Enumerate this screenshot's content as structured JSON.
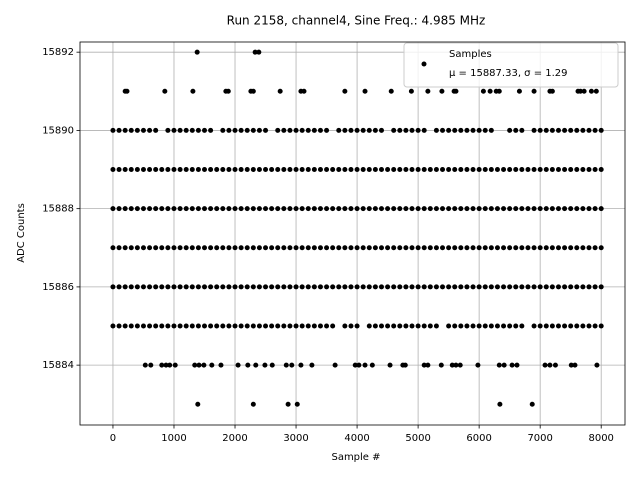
{
  "chart_data": {
    "type": "scatter",
    "title": "Run 2158, channel4, Sine Freq.: 4.985 MHz",
    "x_label": "Sample #",
    "y_label": "ADC Counts",
    "xlim": [
      -540,
      8390
    ],
    "ylim": [
      15882.47,
      15892.26
    ],
    "xticks": [
      0,
      1000,
      2000,
      3000,
      4000,
      5000,
      6000,
      7000,
      8000
    ],
    "yticks": [
      15884,
      15886,
      15888,
      15890,
      15892
    ],
    "grid": true,
    "legend_position": "upper right",
    "x": [
      1380,
      2330,
      2390,
      200,
      230,
      850,
      1310,
      1850,
      1890,
      2260,
      2300,
      2740,
      3080,
      3130,
      3800,
      4130,
      4560,
      4890,
      5160,
      5390,
      5590,
      5620,
      6070,
      6180,
      6280,
      6330,
      6660,
      6900,
      7160,
      7200,
      7620,
      7660,
      7720,
      7840,
      7920,
      0,
      100,
      200,
      300,
      400,
      500,
      600,
      700,
      900,
      1000,
      1100,
      1200,
      1300,
      1400,
      1500,
      1600,
      1800,
      1900,
      2000,
      2100,
      2200,
      2300,
      2400,
      2500,
      2700,
      2800,
      2900,
      3000,
      3100,
      3200,
      3300,
      3400,
      3500,
      3700,
      3800,
      3900,
      4000,
      4100,
      4200,
      4300,
      4400,
      4600,
      4700,
      4800,
      4900,
      5000,
      5100,
      5300,
      5400,
      5500,
      5600,
      5700,
      5800,
      5900,
      6000,
      6100,
      6200,
      6500,
      6600,
      6700,
      6900,
      7000,
      7100,
      7200,
      7300,
      7400,
      7500,
      7600,
      7700,
      7800,
      7900,
      8000,
      0,
      100,
      200,
      300,
      400,
      500,
      600,
      700,
      800,
      900,
      1000,
      1100,
      1200,
      1300,
      1400,
      1500,
      1600,
      1700,
      1800,
      1900,
      2000,
      2100,
      2200,
      2300,
      2400,
      2500,
      2600,
      2700,
      2800,
      2900,
      3000,
      3100,
      3200,
      3300,
      3400,
      3500,
      3600,
      3700,
      3800,
      3900,
      4000,
      4100,
      4200,
      4300,
      4400,
      4500,
      4600,
      4700,
      4800,
      4900,
      5000,
      5100,
      5200,
      5300,
      5400,
      5500,
      5600,
      5700,
      5800,
      5900,
      6000,
      6100,
      6200,
      6300,
      6400,
      6500,
      6600,
      6700,
      6800,
      6900,
      7000,
      7100,
      7200,
      7300,
      7400,
      7500,
      7600,
      7700,
      7800,
      7900,
      8000,
      0,
      100,
      200,
      300,
      400,
      500,
      600,
      700,
      800,
      900,
      1000,
      1100,
      1200,
      1300,
      1400,
      1500,
      1600,
      1700,
      1800,
      1900,
      2000,
      2100,
      2200,
      2300,
      2400,
      2500,
      2600,
      2700,
      2800,
      2900,
      3000,
      3100,
      3200,
      3300,
      3400,
      3500,
      3600,
      3700,
      3800,
      3900,
      4000,
      4100,
      4200,
      4300,
      4400,
      4500,
      4600,
      4700,
      4800,
      4900,
      5000,
      5100,
      5200,
      5300,
      5400,
      5500,
      5600,
      5700,
      5800,
      5900,
      6000,
      6100,
      6200,
      6300,
      6400,
      6500,
      6600,
      6700,
      6800,
      6900,
      7000,
      7100,
      7200,
      7300,
      7400,
      7500,
      7600,
      7700,
      7800,
      7900,
      8000,
      0,
      100,
      200,
      300,
      400,
      500,
      600,
      700,
      800,
      900,
      1000,
      1100,
      1200,
      1300,
      1400,
      1500,
      1600,
      1700,
      1800,
      1900,
      2000,
      2100,
      2200,
      2300,
      2400,
      2500,
      2600,
      2700,
      2800,
      2900,
      3000,
      3100,
      3200,
      3300,
      3400,
      3500,
      3600,
      3700,
      3800,
      3900,
      4000,
      4100,
      4200,
      4300,
      4400,
      4500,
      4600,
      4700,
      4800,
      4900,
      5000,
      5100,
      5200,
      5300,
      5400,
      5500,
      5600,
      5700,
      5800,
      5900,
      6000,
      6100,
      6200,
      6300,
      6400,
      6500,
      6600,
      6700,
      6800,
      6900,
      7000,
      7100,
      7200,
      7300,
      7400,
      7500,
      7600,
      7700,
      7800,
      7900,
      8000,
      0,
      100,
      200,
      300,
      400,
      500,
      600,
      700,
      800,
      900,
      1000,
      1100,
      1200,
      1300,
      1400,
      1500,
      1600,
      1700,
      1800,
      1900,
      2000,
      2100,
      2200,
      2300,
      2400,
      2500,
      2600,
      2700,
      2800,
      2900,
      3000,
      3100,
      3200,
      3300,
      3400,
      3500,
      3600,
      3700,
      3800,
      3900,
      4000,
      4100,
      4200,
      4300,
      4400,
      4500,
      4600,
      4700,
      4800,
      4900,
      5000,
      5100,
      5200,
      5300,
      5400,
      5500,
      5600,
      5700,
      5800,
      5900,
      6000,
      6100,
      6200,
      6300,
      6400,
      6500,
      6600,
      6700,
      6800,
      6900,
      7000,
      7100,
      7200,
      7300,
      7400,
      7500,
      7600,
      7700,
      7800,
      7900,
      8000,
      0,
      100,
      200,
      300,
      400,
      500,
      600,
      700,
      800,
      900,
      1000,
      1100,
      1200,
      1300,
      1400,
      1500,
      1600,
      1700,
      1800,
      1900,
      2000,
      2100,
      2200,
      2300,
      2400,
      2500,
      2600,
      2700,
      2800,
      2900,
      3000,
      3100,
      3200,
      3300,
      3400,
      3500,
      3600,
      3800,
      3900,
      4000,
      4200,
      4300,
      4400,
      4500,
      4600,
      4700,
      4800,
      4900,
      5000,
      5100,
      5200,
      5300,
      5500,
      5600,
      5700,
      5800,
      5900,
      6000,
      6100,
      6200,
      6300,
      6400,
      6500,
      6600,
      6700,
      6900,
      7000,
      7100,
      7200,
      7300,
      7400,
      7500,
      7600,
      7700,
      7800,
      7900,
      8000,
      530,
      620,
      800,
      870,
      930,
      1020,
      1340,
      1410,
      1490,
      1620,
      1770,
      2050,
      2210,
      2340,
      2490,
      2610,
      2840,
      2930,
      3080,
      3260,
      3640,
      3970,
      4030,
      4130,
      4250,
      4540,
      4750,
      4790,
      5100,
      5160,
      5380,
      5560,
      5620,
      5690,
      5980,
      6330,
      6410,
      6540,
      6620,
      7080,
      7160,
      7250,
      7510,
      7570,
      7930,
      1390,
      2300,
      2870,
      3020,
      6340,
      6870
    ],
    "series": [
      {
        "name": "Samples",
        "stats_label": "μ = 15887.33, σ = 1.29",
        "color": "#000000",
        "values": [
          15892,
          15892,
          15892,
          15891,
          15891,
          15891,
          15891,
          15891,
          15891,
          15891,
          15891,
          15891,
          15891,
          15891,
          15891,
          15891,
          15891,
          15891,
          15891,
          15891,
          15891,
          15891,
          15891,
          15891,
          15891,
          15891,
          15891,
          15891,
          15891,
          15891,
          15891,
          15891,
          15891,
          15891,
          15891,
          15890,
          15890,
          15890,
          15890,
          15890,
          15890,
          15890,
          15890,
          15890,
          15890,
          15890,
          15890,
          15890,
          15890,
          15890,
          15890,
          15890,
          15890,
          15890,
          15890,
          15890,
          15890,
          15890,
          15890,
          15890,
          15890,
          15890,
          15890,
          15890,
          15890,
          15890,
          15890,
          15890,
          15890,
          15890,
          15890,
          15890,
          15890,
          15890,
          15890,
          15890,
          15890,
          15890,
          15890,
          15890,
          15890,
          15890,
          15890,
          15890,
          15890,
          15890,
          15890,
          15890,
          15890,
          15890,
          15890,
          15890,
          15890,
          15890,
          15890,
          15890,
          15890,
          15890,
          15890,
          15890,
          15890,
          15890,
          15890,
          15890,
          15890,
          15890,
          15890,
          15889,
          15889,
          15889,
          15889,
          15889,
          15889,
          15889,
          15889,
          15889,
          15889,
          15889,
          15889,
          15889,
          15889,
          15889,
          15889,
          15889,
          15889,
          15889,
          15889,
          15889,
          15889,
          15889,
          15889,
          15889,
          15889,
          15889,
          15889,
          15889,
          15889,
          15889,
          15889,
          15889,
          15889,
          15889,
          15889,
          15889,
          15889,
          15889,
          15889,
          15889,
          15889,
          15889,
          15889,
          15889,
          15889,
          15889,
          15889,
          15889,
          15889,
          15889,
          15889,
          15889,
          15889,
          15889,
          15889,
          15889,
          15889,
          15889,
          15889,
          15889,
          15889,
          15889,
          15889,
          15889,
          15889,
          15889,
          15889,
          15889,
          15889,
          15889,
          15889,
          15889,
          15889,
          15889,
          15889,
          15889,
          15889,
          15889,
          15889,
          15889,
          15888,
          15888,
          15888,
          15888,
          15888,
          15888,
          15888,
          15888,
          15888,
          15888,
          15888,
          15888,
          15888,
          15888,
          15888,
          15888,
          15888,
          15888,
          15888,
          15888,
          15888,
          15888,
          15888,
          15888,
          15888,
          15888,
          15888,
          15888,
          15888,
          15888,
          15888,
          15888,
          15888,
          15888,
          15888,
          15888,
          15888,
          15888,
          15888,
          15888,
          15888,
          15888,
          15888,
          15888,
          15888,
          15888,
          15888,
          15888,
          15888,
          15888,
          15888,
          15888,
          15888,
          15888,
          15888,
          15888,
          15888,
          15888,
          15888,
          15888,
          15888,
          15888,
          15888,
          15888,
          15888,
          15888,
          15888,
          15888,
          15888,
          15888,
          15888,
          15888,
          15888,
          15888,
          15888,
          15888,
          15888,
          15888,
          15888,
          15888,
          15888,
          15887,
          15887,
          15887,
          15887,
          15887,
          15887,
          15887,
          15887,
          15887,
          15887,
          15887,
          15887,
          15887,
          15887,
          15887,
          15887,
          15887,
          15887,
          15887,
          15887,
          15887,
          15887,
          15887,
          15887,
          15887,
          15887,
          15887,
          15887,
          15887,
          15887,
          15887,
          15887,
          15887,
          15887,
          15887,
          15887,
          15887,
          15887,
          15887,
          15887,
          15887,
          15887,
          15887,
          15887,
          15887,
          15887,
          15887,
          15887,
          15887,
          15887,
          15887,
          15887,
          15887,
          15887,
          15887,
          15887,
          15887,
          15887,
          15887,
          15887,
          15887,
          15887,
          15887,
          15887,
          15887,
          15887,
          15887,
          15887,
          15887,
          15887,
          15887,
          15887,
          15887,
          15887,
          15887,
          15887,
          15887,
          15887,
          15887,
          15887,
          15887,
          15886,
          15886,
          15886,
          15886,
          15886,
          15886,
          15886,
          15886,
          15886,
          15886,
          15886,
          15886,
          15886,
          15886,
          15886,
          15886,
          15886,
          15886,
          15886,
          15886,
          15886,
          15886,
          15886,
          15886,
          15886,
          15886,
          15886,
          15886,
          15886,
          15886,
          15886,
          15886,
          15886,
          15886,
          15886,
          15886,
          15886,
          15886,
          15886,
          15886,
          15886,
          15886,
          15886,
          15886,
          15886,
          15886,
          15886,
          15886,
          15886,
          15886,
          15886,
          15886,
          15886,
          15886,
          15886,
          15886,
          15886,
          15886,
          15886,
          15886,
          15886,
          15886,
          15886,
          15886,
          15886,
          15886,
          15886,
          15886,
          15886,
          15886,
          15886,
          15886,
          15886,
          15886,
          15886,
          15886,
          15886,
          15886,
          15886,
          15886,
          15886,
          15885,
          15885,
          15885,
          15885,
          15885,
          15885,
          15885,
          15885,
          15885,
          15885,
          15885,
          15885,
          15885,
          15885,
          15885,
          15885,
          15885,
          15885,
          15885,
          15885,
          15885,
          15885,
          15885,
          15885,
          15885,
          15885,
          15885,
          15885,
          15885,
          15885,
          15885,
          15885,
          15885,
          15885,
          15885,
          15885,
          15885,
          15885,
          15885,
          15885,
          15885,
          15885,
          15885,
          15885,
          15885,
          15885,
          15885,
          15885,
          15885,
          15885,
          15885,
          15885,
          15885,
          15885,
          15885,
          15885,
          15885,
          15885,
          15885,
          15885,
          15885,
          15885,
          15885,
          15885,
          15885,
          15885,
          15885,
          15885,
          15885,
          15885,
          15885,
          15885,
          15885,
          15885,
          15885,
          15885,
          15885,
          15884,
          15884,
          15884,
          15884,
          15884,
          15884,
          15884,
          15884,
          15884,
          15884,
          15884,
          15884,
          15884,
          15884,
          15884,
          15884,
          15884,
          15884,
          15884,
          15884,
          15884,
          15884,
          15884,
          15884,
          15884,
          15884,
          15884,
          15884,
          15884,
          15884,
          15884,
          15884,
          15884,
          15884,
          15884,
          15884,
          15884,
          15884,
          15884,
          15884,
          15884,
          15884,
          15884,
          15884,
          15884,
          15883,
          15883,
          15883,
          15883,
          15883,
          15883
        ]
      }
    ]
  }
}
